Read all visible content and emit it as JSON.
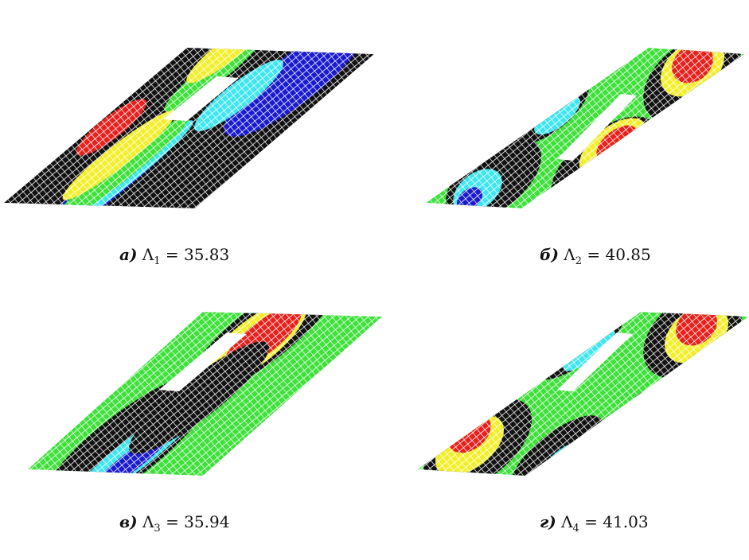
{
  "panels": [
    {
      "letter": "а)",
      "symbol": "Λ",
      "subscript": "1",
      "rest": "= 35.83"
    },
    {
      "letter": "б)",
      "symbol": "Λ",
      "subscript": "2",
      "rest": "= 40.85"
    },
    {
      "letter": "в)",
      "symbol": "Λ",
      "subscript": "3",
      "rest": "= 35.94"
    },
    {
      "letter": "г)",
      "symbol": "Λ",
      "subscript": "4",
      "rest": "= 41.03"
    }
  ]
}
